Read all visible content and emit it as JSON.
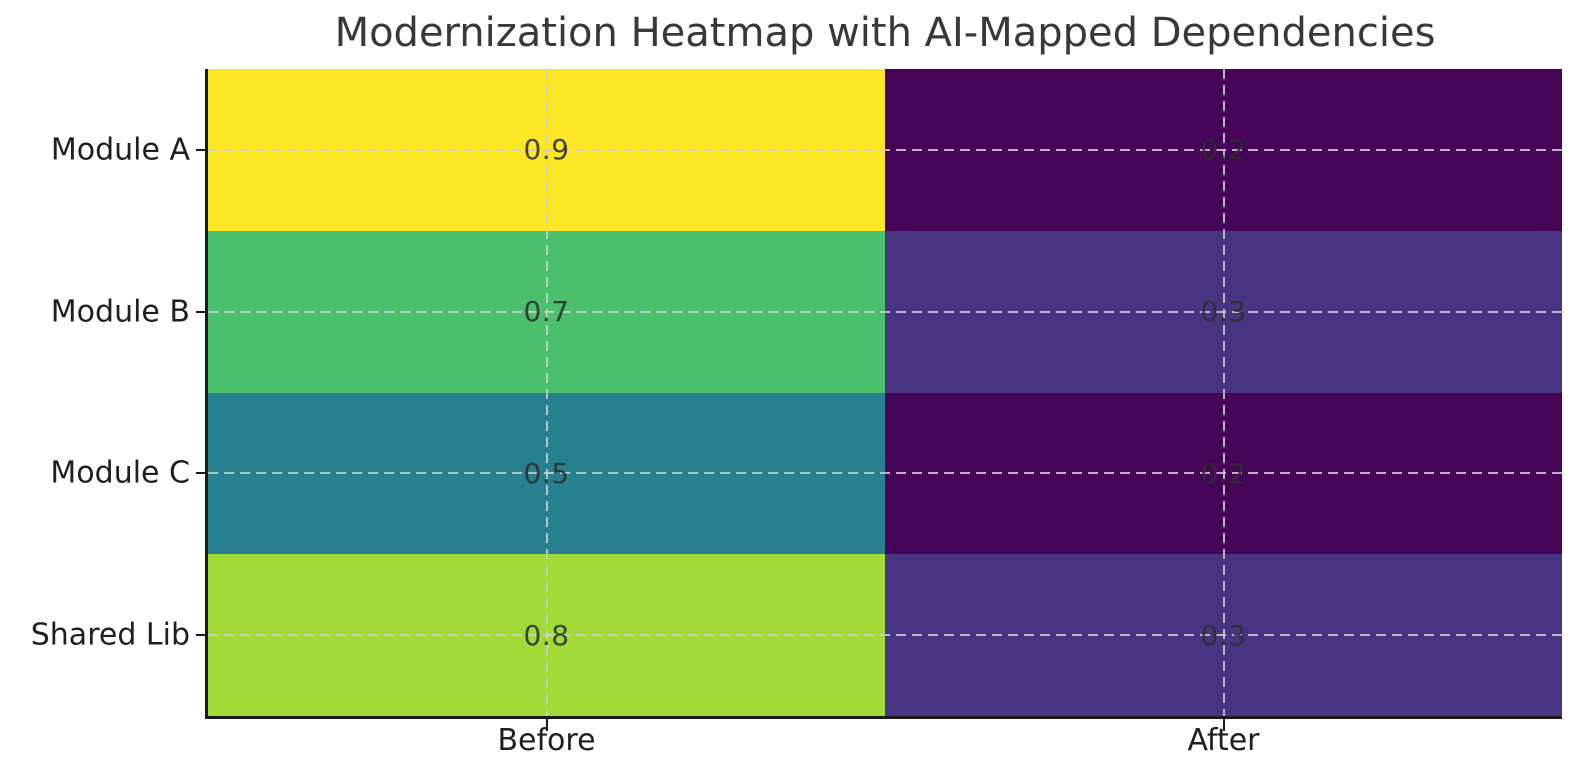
{
  "chart_data": {
    "type": "heatmap",
    "title": "Modernization Heatmap with AI-Mapped Dependencies",
    "columns": [
      "Before",
      "After"
    ],
    "rows": [
      "Module A",
      "Module B",
      "Module C",
      "Shared Lib"
    ],
    "values": [
      [
        0.9,
        0.2
      ],
      [
        0.7,
        0.3
      ],
      [
        0.5,
        0.2
      ],
      [
        0.8,
        0.3
      ]
    ],
    "cell_colors": [
      [
        "#fde725",
        "#450457"
      ],
      [
        "#4bc16d",
        "#473583"
      ],
      [
        "#27808e",
        "#450457"
      ],
      [
        "#a2da37",
        "#473583"
      ]
    ],
    "colormap": "viridis",
    "vmin": 0.2,
    "vmax": 0.9,
    "annotation_color": "#2d2d2d",
    "grid": {
      "visible": true,
      "linestyle": "dashed",
      "color": "#cccccc"
    },
    "axes": {
      "spine_color": "#1a1a1a",
      "tick_label_color": "#1f1f1f",
      "background": "#ffffff"
    },
    "legend": {
      "visible": false
    }
  }
}
